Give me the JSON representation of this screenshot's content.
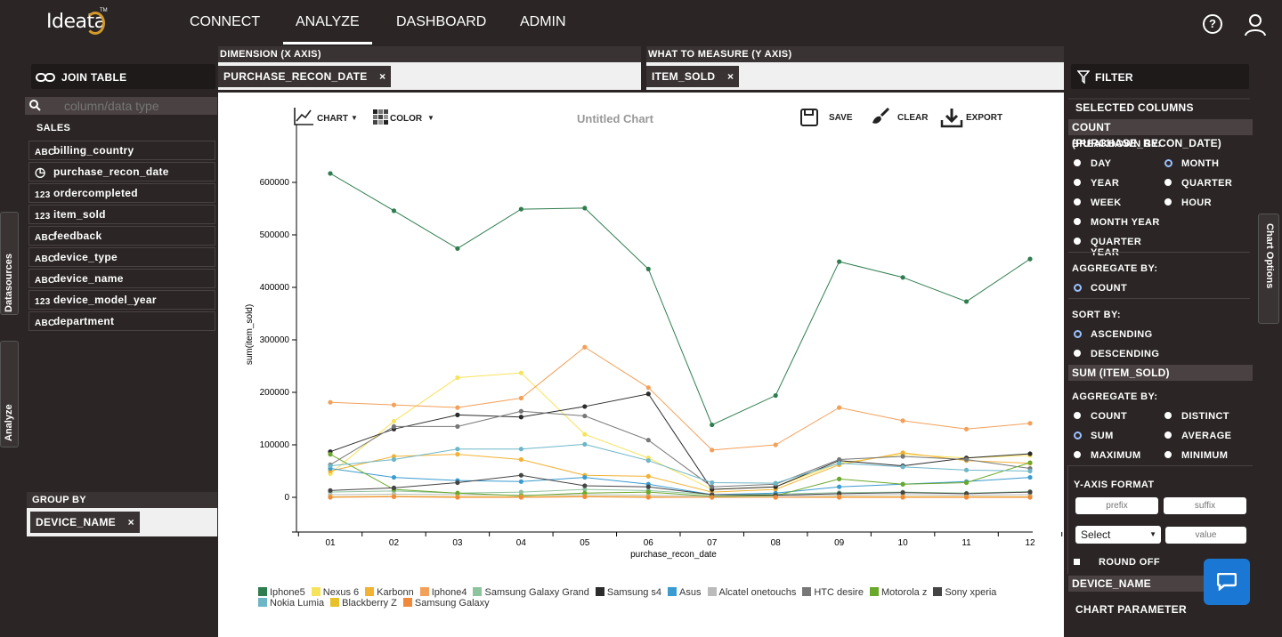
{
  "app": {
    "logo": "Ideata",
    "tm": "TM"
  },
  "nav": [
    {
      "label": "CONNECT",
      "active": false
    },
    {
      "label": "ANALYZE",
      "active": true
    },
    {
      "label": "DASHBOARD",
      "active": false
    },
    {
      "label": "ADMIN",
      "active": false
    }
  ],
  "header": {
    "help_icon": "?"
  },
  "left": {
    "join_table": "JOIN TABLE",
    "search_placeholder": "column/data type",
    "table_name": "SALES",
    "fields": [
      {
        "name": "billing_country",
        "type": "text"
      },
      {
        "name": "purchase_recon_date",
        "type": "date"
      },
      {
        "name": "ordercompleted",
        "type": "number"
      },
      {
        "name": "item_sold",
        "type": "number"
      },
      {
        "name": "feedback",
        "type": "text"
      },
      {
        "name": "device_type",
        "type": "text"
      },
      {
        "name": "device_name",
        "type": "text"
      },
      {
        "name": "device_model_year",
        "type": "number"
      },
      {
        "name": "department",
        "type": "text"
      }
    ],
    "type_icons": {
      "text": "ABC",
      "date": "◷",
      "number": "123"
    },
    "tabs": {
      "datasources": "Datasources",
      "analyze": "Analyze"
    },
    "group_by_title": "GROUP BY",
    "group_by_value": "DEVICE_NAME",
    "remove_symbol": "×"
  },
  "dimension": {
    "title": "DIMENSION (X AXIS)",
    "value": "PURCHASE_RECON_DATE"
  },
  "measure": {
    "title": "WHAT TO MEASURE (Y AXIS)",
    "value": "ITEM_SOLD"
  },
  "toolbar": {
    "chart": "CHART",
    "color": "COLOR",
    "title": "Untitled Chart",
    "save": "SAVE",
    "clear": "CLEAR",
    "export": "EXPORT"
  },
  "right": {
    "filter": "FILTER",
    "selected_columns": "SELECTED COLUMNS",
    "count_header": "COUNT (PURCHASE_RECON_DATE)",
    "breakdown_by": "BREAKDOWN BY:",
    "breakdown_options": [
      {
        "label": "DAY",
        "selected": false
      },
      {
        "label": "MONTH",
        "selected": true
      },
      {
        "label": "YEAR",
        "selected": false
      },
      {
        "label": "QUARTER",
        "selected": false
      },
      {
        "label": "WEEK",
        "selected": false
      },
      {
        "label": "HOUR",
        "selected": false
      },
      {
        "label": "MONTH YEAR",
        "selected": false
      },
      {
        "label": "QUARTER YEAR",
        "selected": false
      }
    ],
    "aggregate_by": "AGGREGATE BY:",
    "aggregate_count": {
      "label": "COUNT",
      "selected": true
    },
    "sort_by": "SORT BY:",
    "sort_options": [
      {
        "label": "ASCENDING",
        "selected": true
      },
      {
        "label": "DESCENDING",
        "selected": false
      }
    ],
    "sum_header": "SUM (ITEM_SOLD)",
    "aggregate_by_2": "AGGREGATE BY:",
    "aggregate_options": [
      {
        "label": "COUNT",
        "selected": false
      },
      {
        "label": "DISTINCT",
        "selected": false
      },
      {
        "label": "SUM",
        "selected": true
      },
      {
        "label": "AVERAGE",
        "selected": false
      },
      {
        "label": "MAXIMUM",
        "selected": false
      },
      {
        "label": "MINIMUM",
        "selected": false
      }
    ],
    "y_axis_format": "Y-AXIS FORMAT",
    "prefix_placeholder": "prefix",
    "suffix_placeholder": "suffix",
    "select_value": "Select",
    "value_placeholder": "value",
    "round_off": "ROUND OFF",
    "device_name_header": "DEVICE_NAME",
    "chart_parameter": "CHART PARAMETER",
    "chart_options_tab": "Chart Options"
  },
  "colors": {
    "accent": "#1a78d4",
    "radio_selected": "#9bc2ff",
    "bg": "#2b2525"
  },
  "chart_data": {
    "type": "line",
    "title": "Untitled Chart",
    "xlabel": "purchase_recon_date",
    "ylabel": "sum(item_sold)",
    "categories": [
      "01",
      "02",
      "03",
      "04",
      "05",
      "06",
      "07",
      "08",
      "09",
      "10",
      "11",
      "12"
    ],
    "ylim": [
      -60000,
      660000
    ],
    "yticks": [
      0,
      100000,
      200000,
      300000,
      400000,
      500000,
      600000
    ],
    "grid": false,
    "legend_position": "bottom",
    "series": [
      {
        "name": "Iphone5",
        "color": "#2e7d4f",
        "values": [
          617000,
          546000,
          474000,
          549000,
          551000,
          435000,
          138000,
          194000,
          449000,
          419000,
          373000,
          454000
        ]
      },
      {
        "name": "Nexus 6",
        "color": "#f7e35b",
        "values": [
          45000,
          145000,
          228000,
          237000,
          120000,
          75000,
          15000,
          20000,
          65000,
          82000,
          75000,
          80000
        ]
      },
      {
        "name": "Karbonn",
        "color": "#f2b233",
        "values": [
          50000,
          78000,
          82000,
          72000,
          42000,
          40000,
          10000,
          15000,
          62000,
          85000,
          70000,
          65000
        ]
      },
      {
        "name": "Iphone4",
        "color": "#f3a05a",
        "values": [
          181000,
          176000,
          171000,
          189000,
          286000,
          209000,
          90000,
          100000,
          171000,
          146000,
          130000,
          141000
        ]
      },
      {
        "name": "Samsung Galaxy Grand",
        "color": "#8dc49e",
        "values": [
          10000,
          12000,
          8000,
          10000,
          15000,
          13000,
          5000,
          6000,
          9000,
          10000,
          8000,
          11000
        ]
      },
      {
        "name": "Samsung s4",
        "color": "#2b2b2b",
        "values": [
          87000,
          130000,
          157000,
          153000,
          173000,
          197000,
          15000,
          20000,
          70000,
          60000,
          75000,
          83000
        ]
      },
      {
        "name": "Asus",
        "color": "#3a9bd0",
        "values": [
          55000,
          38000,
          32000,
          30000,
          38000,
          25000,
          5000,
          8000,
          20000,
          25000,
          30000,
          38000
        ]
      },
      {
        "name": "Alcatel onetouchs",
        "color": "#bbbbbb",
        "values": [
          5000,
          6000,
          5000,
          4000,
          5000,
          4000,
          2000,
          3000,
          4000,
          5000,
          4000,
          5000
        ]
      },
      {
        "name": "HTC desire",
        "color": "#777777",
        "values": [
          62000,
          135000,
          135000,
          164000,
          155000,
          109000,
          20000,
          25000,
          72000,
          78000,
          72000,
          55000
        ]
      },
      {
        "name": "Motorola z",
        "color": "#6aa82a",
        "values": [
          82000,
          15000,
          8000,
          3000,
          8000,
          10000,
          2000,
          3000,
          35000,
          25000,
          28000,
          66000
        ]
      },
      {
        "name": "Sony xperia",
        "color": "#444444",
        "values": [
          13000,
          18000,
          28000,
          42000,
          22000,
          20000,
          5000,
          4000,
          7000,
          9000,
          7000,
          10000
        ]
      },
      {
        "name": "Nokia Lumia",
        "color": "#6db6c8",
        "values": [
          60000,
          72000,
          92000,
          92000,
          101000,
          70000,
          28000,
          27000,
          65000,
          58000,
          52000,
          50000
        ]
      },
      {
        "name": "Blackberry Z",
        "color": "#e8c02a",
        "values": [
          1000,
          2000,
          1000,
          1000,
          2000,
          1000,
          0,
          0,
          1000,
          1000,
          1000,
          1000
        ]
      },
      {
        "name": "Samsung Galaxy",
        "color": "#f08a3a",
        "values": [
          0,
          1000,
          0,
          0,
          1000,
          0,
          0,
          0,
          0,
          0,
          0,
          0
        ]
      }
    ]
  }
}
